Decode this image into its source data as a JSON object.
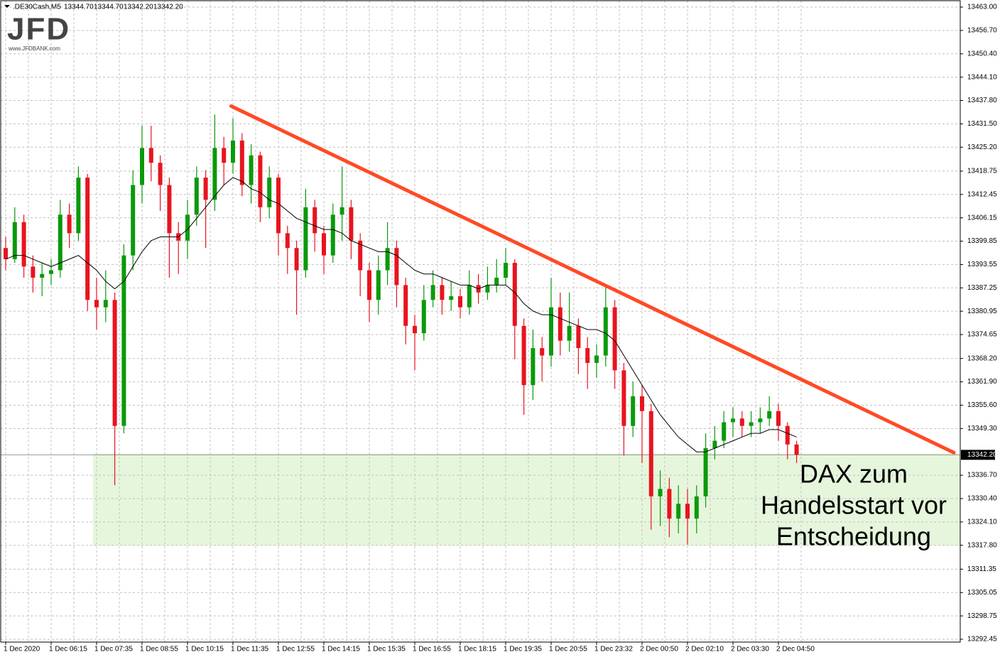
{
  "header": {
    "symbol": ".DE30Cash,M5",
    "ohlc": [
      "13344.70",
      "13344.70",
      "13342.20",
      "13342.20"
    ],
    "logo": "JFD",
    "logo_url": "www.JFDBANK.com"
  },
  "chart_data": {
    "type": "candlestick",
    "categories": [
      "1 Dec 2020",
      null,
      null,
      null,
      null,
      "1 Dec 06:15",
      null,
      null,
      null,
      null,
      "1 Dec 07:35",
      null,
      null,
      null,
      null,
      "1 Dec 08:55",
      null,
      null,
      null,
      null,
      "1 Dec 10:15",
      null,
      null,
      null,
      null,
      "1 Dec 11:35",
      null,
      null,
      null,
      null,
      "1 Dec 12:55",
      null,
      null,
      null,
      null,
      "1 Dec 14:15",
      null,
      null,
      null,
      null,
      "1 Dec 15:35",
      null,
      null,
      null,
      null,
      "1 Dec 16:55",
      null,
      null,
      null,
      null,
      "1 Dec 18:15",
      null,
      null,
      null,
      null,
      "1 Dec 19:35",
      null,
      null,
      null,
      null,
      "1 Dec 20:55",
      null,
      null,
      null,
      null,
      "1 Dec 23:32",
      null,
      null,
      null,
      null,
      "2 Dec 00:50",
      null,
      null,
      null,
      null,
      "2 Dec 02:10",
      null,
      null,
      null,
      null,
      "2 Dec 03:30",
      null,
      null,
      null,
      null,
      "2 Dec 04:50",
      null,
      null
    ],
    "open": [
      13398,
      13395,
      13405,
      13393,
      13390,
      13391,
      13392,
      13407,
      13402,
      13417,
      13384,
      13382,
      13384,
      13350,
      13396,
      13415,
      13425,
      13421,
      13415,
      13402,
      13400,
      13407,
      13417,
      13411,
      13425,
      13421,
      13427,
      13415,
      13423,
      13409,
      13417,
      13402,
      13398,
      13392,
      13409,
      13402,
      13396,
      13407,
      13409,
      13400,
      13392,
      13384,
      13392,
      13398,
      13388,
      13377,
      13375,
      13384,
      13388,
      13384,
      13385,
      13382,
      13388,
      13386,
      13388,
      13390,
      13394,
      13377,
      13361,
      13371,
      13369,
      13382,
      13373,
      13377,
      13371,
      13367,
      13369,
      13382,
      13365,
      13350,
      13358,
      13354,
      13331,
      13333,
      13325,
      13329,
      13325,
      13331,
      13344,
      13346,
      13351,
      13352,
      13350,
      13351,
      13352,
      13354,
      13350,
      13345
    ],
    "high": [
      13401,
      13409,
      13407,
      13396,
      13394,
      13395,
      13411,
      13410,
      13420,
      13418,
      13390,
      13392,
      13386,
      13399,
      13419,
      13431,
      13431,
      13423,
      13417,
      13405,
      13411,
      13420,
      13419,
      13434,
      13428,
      13433,
      13429,
      13426,
      13424,
      13420,
      13418,
      13404,
      13400,
      13414,
      13411,
      13404,
      13410,
      13420,
      13411,
      13402,
      13394,
      13396,
      13405,
      13400,
      13390,
      13380,
      13388,
      13392,
      13390,
      13389,
      13387,
      13392,
      13391,
      13393,
      13395,
      13398,
      13395,
      13379,
      13376,
      13374,
      13390,
      13386,
      13386,
      13379,
      13374,
      13372,
      13388,
      13384,
      13367,
      13362,
      13361,
      13356,
      13338,
      13336,
      13334,
      13333,
      13334,
      13348,
      13350,
      13354,
      13355,
      13354,
      13354,
      13355,
      13358,
      13356,
      13351,
      13346
    ],
    "low": [
      13392,
      13394,
      13390,
      13386,
      13385,
      13388,
      13390,
      13398,
      13400,
      13381,
      13376,
      13378,
      13334,
      13348,
      13392,
      13410,
      13416,
      13408,
      13390,
      13391,
      13395,
      13404,
      13398,
      13408,
      13415,
      13418,
      13412,
      13410,
      13405,
      13406,
      13396,
      13391,
      13380,
      13390,
      13397,
      13391,
      13394,
      13400,
      13395,
      13385,
      13378,
      13380,
      13388,
      13382,
      13372,
      13365,
      13373,
      13382,
      13380,
      13381,
      13379,
      13380,
      13383,
      13384,
      13386,
      13388,
      13368,
      13353,
      13357,
      13362,
      13366,
      13369,
      13370,
      13364,
      13360,
      13363,
      13366,
      13360,
      13342,
      13347,
      13340,
      13322,
      13323,
      13320,
      13321,
      13318,
      13321,
      13328,
      13341,
      13344,
      13347,
      13347,
      13347,
      13348,
      13350,
      13346,
      13341,
      13340
    ],
    "close": [
      13395,
      13405,
      13393,
      13390,
      13391,
      13392,
      13407,
      13402,
      13417,
      13384,
      13382,
      13384,
      13350,
      13396,
      13415,
      13425,
      13421,
      13415,
      13402,
      13400,
      13407,
      13417,
      13411,
      13425,
      13421,
      13427,
      13415,
      13423,
      13409,
      13417,
      13402,
      13398,
      13392,
      13409,
      13402,
      13396,
      13407,
      13409,
      13400,
      13392,
      13384,
      13392,
      13398,
      13388,
      13377,
      13375,
      13384,
      13388,
      13384,
      13385,
      13382,
      13388,
      13386,
      13388,
      13390,
      13394,
      13377,
      13361,
      13371,
      13369,
      13382,
      13373,
      13377,
      13371,
      13367,
      13369,
      13382,
      13365,
      13350,
      13358,
      13354,
      13331,
      13333,
      13325,
      13329,
      13325,
      13331,
      13344,
      13346,
      13351,
      13352,
      13350,
      13351,
      13352,
      13354,
      13350,
      13345,
      13342.2
    ],
    "up_color": "#0a9a0a",
    "down_color": "#e8141e",
    "moving_average": {
      "color": "#000000",
      "values": [
        13395,
        13396,
        13396,
        13395,
        13394,
        13393,
        13394,
        13395,
        13396,
        13394,
        13392,
        13389,
        13387,
        13389,
        13393,
        13397,
        13400,
        13401,
        13401,
        13401,
        13403,
        13406,
        13409,
        13412,
        13415,
        13417,
        13416,
        13414,
        13413,
        13411,
        13410,
        13408,
        13406,
        13405,
        13404,
        13403,
        13403,
        13402,
        13400,
        13399,
        13398,
        13397,
        13397,
        13396,
        13394,
        13392,
        13391,
        13391,
        13390,
        13389,
        13388,
        13388,
        13387,
        13388,
        13388,
        13388,
        13386,
        13383,
        13381,
        13380,
        13380,
        13379,
        13378,
        13377,
        13376,
        13376,
        13375,
        13373,
        13369,
        13365,
        13361,
        13357,
        13353,
        13350,
        13347,
        13345,
        13343,
        13343,
        13344,
        13345,
        13346,
        13347,
        13348,
        13348,
        13349,
        13349,
        13348,
        13347
      ]
    },
    "ylim": [
      13292.45,
      13463
    ],
    "yticks": [
      {
        "value": 13463,
        "label": "13463.00"
      },
      {
        "value": 13456.7,
        "label": "13456.70"
      },
      {
        "value": 13450.4,
        "label": "13450.40"
      },
      {
        "value": 13444.1,
        "label": "13444.10"
      },
      {
        "value": 13437.8,
        "label": "13437.80"
      },
      {
        "value": 13431.5,
        "label": "13431.50"
      },
      {
        "value": 13425.2,
        "label": "13425.20"
      },
      13418.75,
      13412.45,
      13406.15,
      13399.85,
      13393.55,
      13387.25,
      13380.95,
      13374.65,
      {
        "value": 13368.2,
        "label": "13368.20"
      },
      {
        "value": 13361.9,
        "label": "13361.90"
      },
      {
        "value": 13355.6,
        "label": "13355.60"
      },
      {
        "value": 13349.3,
        "label": "13349.30"
      },
      {
        "value": 13336.7,
        "label": "13336.70"
      },
      {
        "value": 13330.4,
        "label": "13330.40"
      },
      {
        "value": 13324.1,
        "label": "13324.10"
      },
      {
        "value": 13317.8,
        "label": "13317.80"
      },
      13311.35,
      13305.05,
      13298.75,
      13292.45
    ],
    "grid": true,
    "current_price": {
      "value": 13342.2,
      "label": "13342.20"
    },
    "trend_line": {
      "color": "#ff4a26",
      "from": {
        "x": 24.8,
        "y": 13436.3
      },
      "to": {
        "x": 104.3,
        "y": 13342.8
      }
    },
    "support_zone": {
      "color": "#e6f6dc",
      "x_from": 9.6,
      "y_top": 13342.6,
      "y_bottom": 13317.7
    },
    "annotation": [
      "DAX zum",
      "Handelsstart vor",
      "Entscheidung"
    ]
  }
}
